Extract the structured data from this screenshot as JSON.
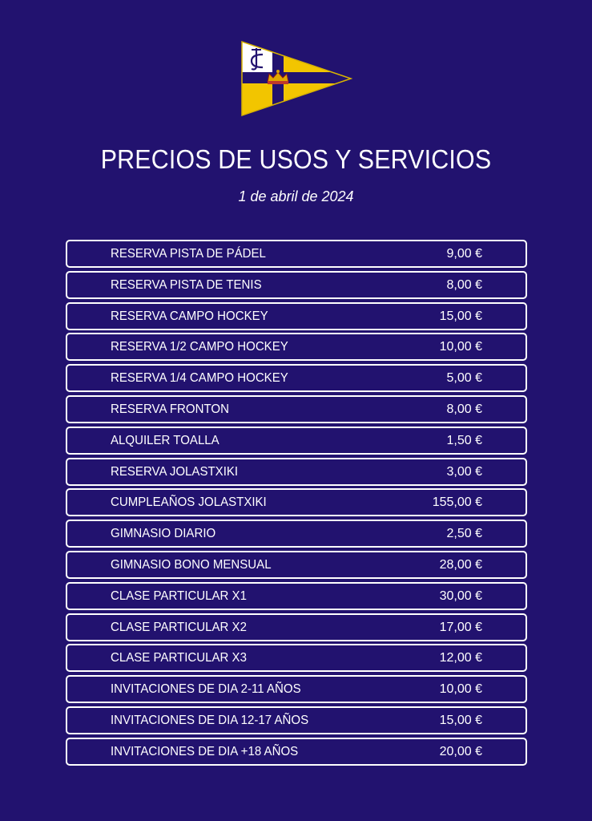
{
  "header": {
    "logo_name": "club-burgee-logo",
    "title": "PRECIOS DE USOS Y SERVICIOS",
    "date": "1 de abril de 2024"
  },
  "colors": {
    "background": "#22126f",
    "text": "#ffffff",
    "flag_yellow": "#f2c500",
    "flag_navy": "#22126f"
  },
  "prices": [
    {
      "name": "RESERVA PISTA DE PÁDEL",
      "price": "9,00 €"
    },
    {
      "name": "RESERVA PISTA DE TENIS",
      "price": "8,00 €"
    },
    {
      "name": "RESERVA CAMPO HOCKEY",
      "price": "15,00 €"
    },
    {
      "name": "RESERVA 1/2 CAMPO HOCKEY",
      "price": "10,00 €"
    },
    {
      "name": "RESERVA 1/4 CAMPO HOCKEY",
      "price": "5,00 €"
    },
    {
      "name": "RESERVA FRONTON",
      "price": "8,00 €"
    },
    {
      "name": "ALQUILER TOALLA",
      "price": "1,50 €"
    },
    {
      "name": "RESERVA JOLASTXIKI",
      "price": "3,00 €"
    },
    {
      "name": "CUMPLEAÑOS JOLASTXIKI",
      "price": "155,00 €"
    },
    {
      "name": "GIMNASIO DIARIO",
      "price": "2,50 €"
    },
    {
      "name": "GIMNASIO BONO MENSUAL",
      "price": "28,00 €"
    },
    {
      "name": "CLASE PARTICULAR X1",
      "price": "30,00 €"
    },
    {
      "name": "CLASE PARTICULAR X2",
      "price": "17,00 €"
    },
    {
      "name": "CLASE PARTICULAR X3",
      "price": "12,00 €"
    },
    {
      "name": "INVITACIONES DE DIA 2-11 AÑOS",
      "price": "10,00 €"
    },
    {
      "name": "INVITACIONES DE DIA 12-17 AÑOS",
      "price": "15,00 €"
    },
    {
      "name": "INVITACIONES DE DIA +18 AÑOS",
      "price": "20,00 €"
    }
  ]
}
